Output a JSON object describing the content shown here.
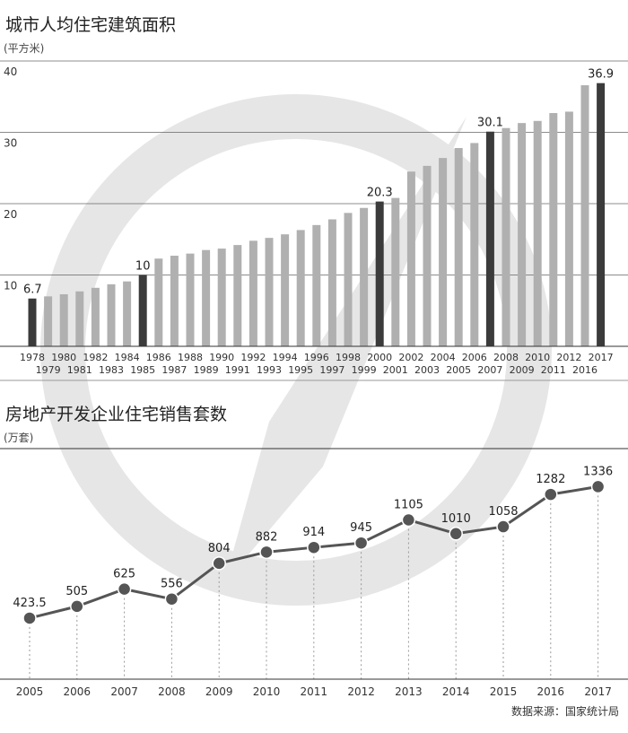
{
  "source": "数据来源：国家统计局",
  "colors": {
    "bar_normal": "#b0b0b0",
    "bar_highlight": "#3b3b3b",
    "line": "#555555",
    "watermark": "#e6e6e6",
    "grid": "#666666",
    "text": "#333333"
  },
  "chart_data": [
    {
      "type": "bar",
      "title": "城市人均住宅建筑面积",
      "ylabel": "(平方米)",
      "ylim": [
        0,
        40
      ],
      "yticks": [
        10,
        20,
        30,
        40
      ],
      "grid": true,
      "categories": [
        "1978",
        "1979",
        "1980",
        "1981",
        "1982",
        "1983",
        "1984",
        "1985",
        "1986",
        "1987",
        "1988",
        "1989",
        "1990",
        "1991",
        "1992",
        "1993",
        "1994",
        "1995",
        "1996",
        "1997",
        "1998",
        "1999",
        "2000",
        "2001",
        "2002",
        "2003",
        "2004",
        "2005",
        "2006",
        "2007",
        "2008",
        "2009",
        "2010",
        "2011",
        "2012",
        "2016",
        "2017"
      ],
      "values": [
        6.7,
        7.0,
        7.3,
        7.7,
        8.2,
        8.7,
        9.1,
        10,
        12.3,
        12.7,
        13.0,
        13.5,
        13.7,
        14.2,
        14.8,
        15.2,
        15.7,
        16.3,
        17.0,
        17.8,
        18.7,
        19.4,
        20.3,
        20.8,
        24.5,
        25.3,
        26.4,
        27.8,
        28.5,
        30.1,
        30.6,
        31.3,
        31.6,
        32.7,
        32.9,
        36.6,
        36.9
      ],
      "highlight_indices": [
        0,
        7,
        22,
        29,
        36
      ],
      "data_labels": [
        {
          "index": 0,
          "text": "6.7"
        },
        {
          "index": 7,
          "text": "10"
        },
        {
          "index": 22,
          "text": "20.3"
        },
        {
          "index": 29,
          "text": "30.1"
        },
        {
          "index": 36,
          "text": "36.9"
        }
      ]
    },
    {
      "type": "line",
      "title": "房地产开发企业住宅销售套数",
      "ylabel": "(万套)",
      "ylim": [
        0,
        1600
      ],
      "categories": [
        "2005",
        "2006",
        "2007",
        "2008",
        "2009",
        "2010",
        "2011",
        "2012",
        "2013",
        "2014",
        "2015",
        "2016",
        "2017"
      ],
      "values": [
        423.5,
        505,
        625,
        556,
        804,
        882,
        914,
        945,
        1105,
        1010,
        1058,
        1282,
        1336
      ],
      "data_labels": [
        "423.5",
        "505",
        "625",
        "556",
        "804",
        "882",
        "914",
        "945",
        "1105",
        "1010",
        "1058",
        "1282",
        "1336"
      ]
    }
  ]
}
